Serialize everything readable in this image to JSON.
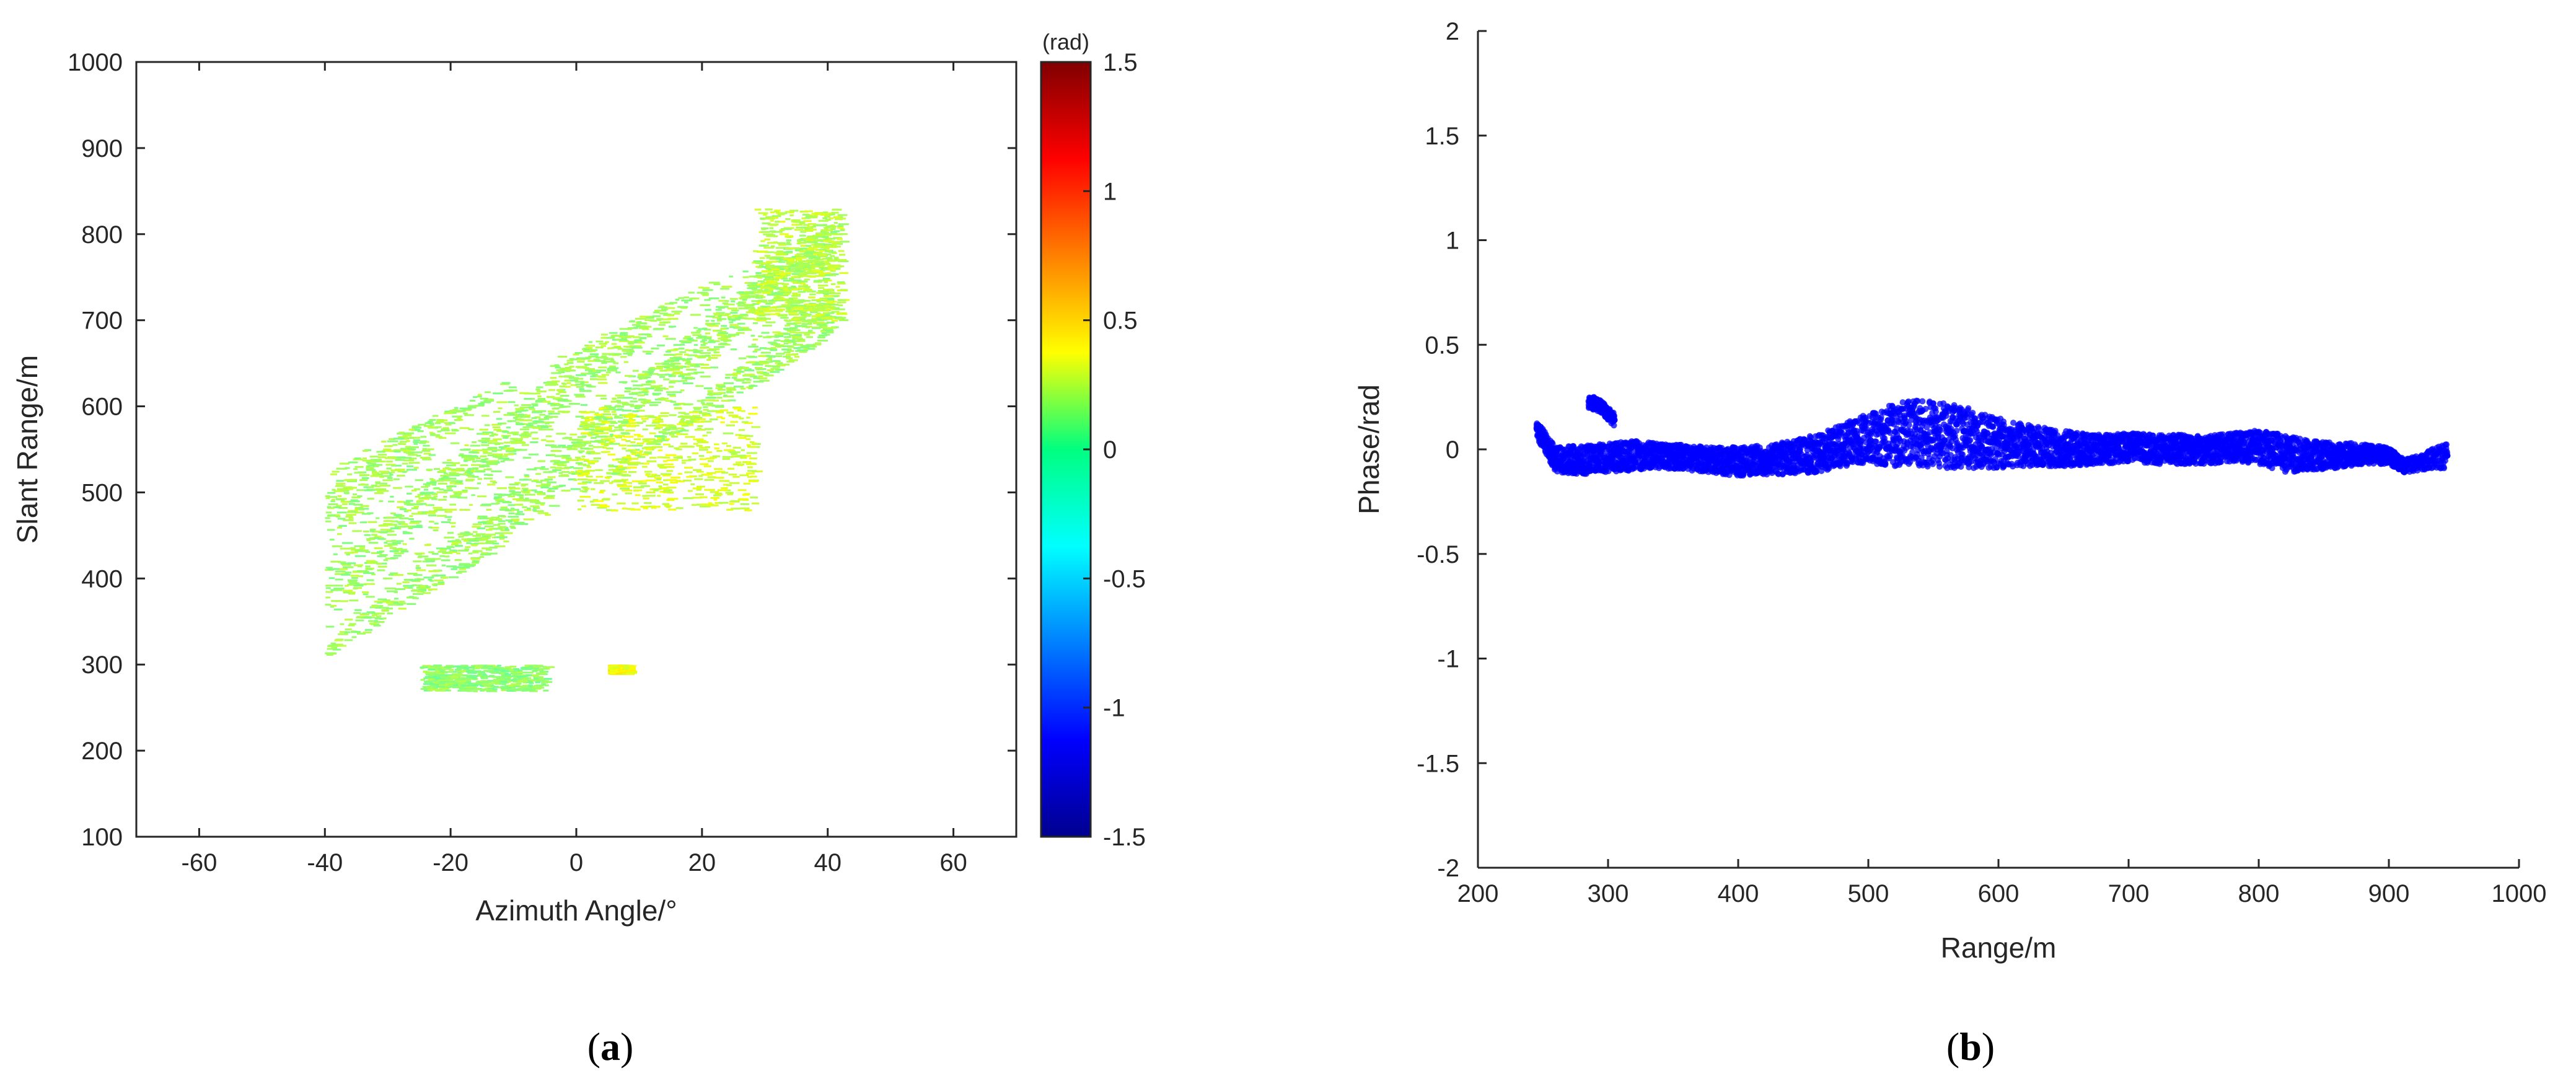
{
  "chart_data": [
    {
      "type": "heatmap",
      "panel_label": "a",
      "xlabel": "Azimuth Angle/°",
      "ylabel": "Slant Range/m",
      "xlim": [
        -70,
        70
      ],
      "ylim": [
        100,
        1000
      ],
      "xticks": [
        -60,
        -40,
        -20,
        0,
        20,
        40,
        60
      ],
      "yticks": [
        100,
        200,
        300,
        400,
        500,
        600,
        700,
        800,
        900,
        1000
      ],
      "grid": false,
      "colorbar": {
        "unit": "(rad)",
        "range": [
          -1.5,
          1.5
        ],
        "ticks": [
          1.5,
          1,
          0.5,
          0,
          -0.5,
          -1,
          -1.5
        ],
        "tick_labels": [
          "1.5",
          "1",
          "0.5",
          "0",
          "-0.5",
          "-1",
          "-1.5"
        ],
        "colormap": "jet"
      },
      "regions": [
        {
          "kind": "main-body",
          "azimuth_range": [
            -40,
            41
          ],
          "slant_range": [
            310,
            820
          ],
          "phase": 0.1
        },
        {
          "kind": "ridge",
          "azimuth_range": [
            0,
            28
          ],
          "slant_range": [
            480,
            600
          ],
          "phase": 0.25
        },
        {
          "kind": "upper-tip",
          "azimuth_range": [
            28,
            42
          ],
          "slant_range": [
            700,
            830
          ],
          "phase": 0.18
        },
        {
          "kind": "lower-patch",
          "azimuth_range": [
            -25,
            -5
          ],
          "slant_range": [
            270,
            300
          ],
          "phase": 0.05
        },
        {
          "kind": "small-patch",
          "azimuth_range": [
            5,
            8
          ],
          "slant_range": [
            290,
            300
          ],
          "phase": 0.35
        }
      ]
    },
    {
      "type": "scatter",
      "panel_label": "b",
      "xlabel": "Range/m",
      "ylabel": "Phase/rad",
      "xlim": [
        200,
        1000
      ],
      "ylim": [
        -2,
        2
      ],
      "xticks": [
        200,
        300,
        400,
        500,
        600,
        700,
        800,
        900,
        1000
      ],
      "yticks": [
        -2,
        -1.5,
        -1,
        -0.5,
        0,
        0.5,
        1,
        1.5,
        2
      ],
      "grid": false,
      "series": [
        {
          "color": "#0000ff",
          "x": [
            245,
            260,
            280,
            300,
            320,
            340,
            360,
            380,
            400,
            420,
            440,
            460,
            480,
            500,
            520,
            540,
            560,
            580,
            600,
            620,
            640,
            660,
            680,
            700,
            720,
            740,
            760,
            780,
            800,
            820,
            840,
            860,
            880,
            900,
            912,
            945
          ],
          "y": [
            0.1,
            -0.05,
            -0.05,
            -0.04,
            -0.03,
            -0.03,
            -0.04,
            -0.05,
            -0.06,
            -0.05,
            -0.04,
            -0.02,
            0.02,
            0.05,
            0.07,
            0.08,
            0.07,
            0.05,
            0.03,
            0.02,
            0.01,
            0.0,
            0.0,
            0.01,
            0.0,
            0.0,
            0.0,
            0.01,
            0.01,
            -0.02,
            -0.03,
            -0.03,
            -0.02,
            -0.03,
            -0.08,
            -0.03
          ],
          "spread": [
            0.04,
            0.06,
            0.07,
            0.07,
            0.07,
            0.06,
            0.06,
            0.06,
            0.07,
            0.07,
            0.08,
            0.09,
            0.1,
            0.12,
            0.15,
            0.16,
            0.16,
            0.14,
            0.12,
            0.1,
            0.09,
            0.08,
            0.07,
            0.07,
            0.07,
            0.07,
            0.07,
            0.07,
            0.08,
            0.09,
            0.07,
            0.06,
            0.05,
            0.04,
            0.03,
            0.06
          ]
        },
        {
          "color": "#0000ff",
          "x": [
            285,
            290,
            295,
            300,
            305
          ],
          "y": [
            0.22,
            0.22,
            0.2,
            0.17,
            0.14
          ],
          "spread": [
            0.03,
            0.03,
            0.03,
            0.03,
            0.03
          ]
        }
      ]
    }
  ]
}
